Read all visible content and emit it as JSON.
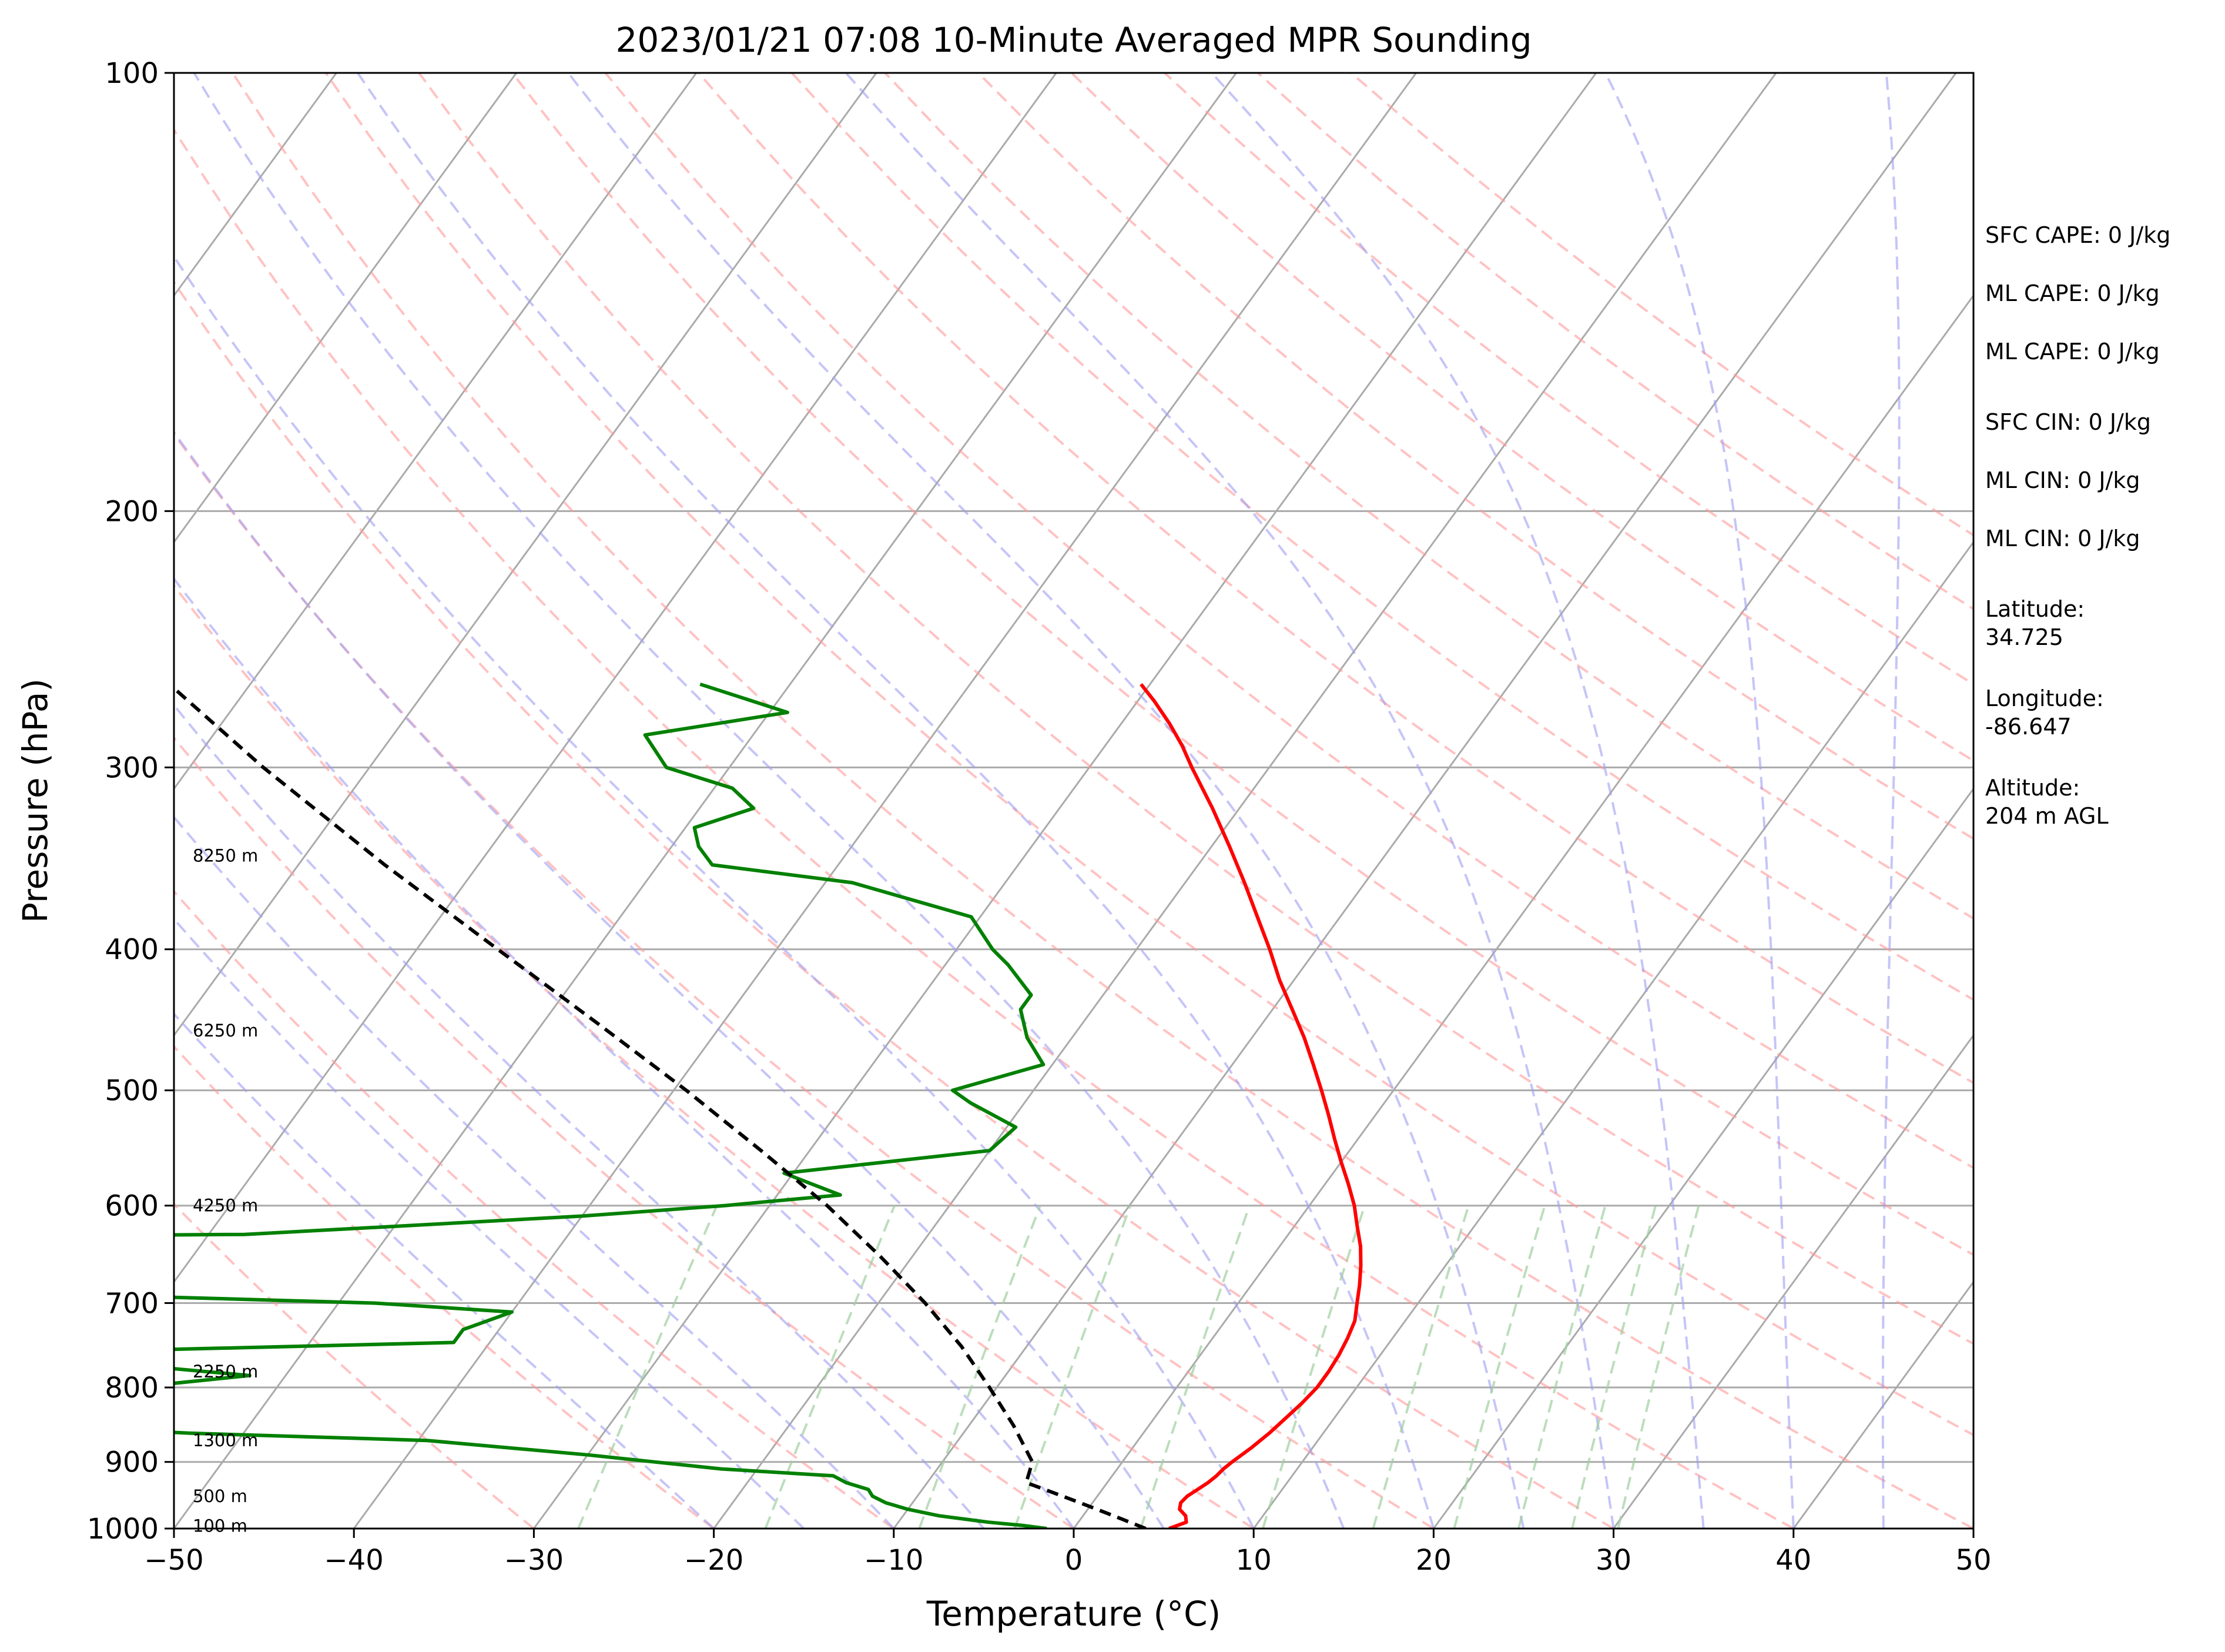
{
  "chart_data": {
    "type": "line",
    "title": "2023/01/21 07:08 10-Minute Averaged MPR Sounding",
    "xlabel": "Temperature (°C)",
    "ylabel": "Pressure (hPa)",
    "xlim": [
      -50,
      50
    ],
    "ylim": [
      1000,
      100
    ],
    "yscale": "log",
    "x_ticks": [
      "−50",
      "−40",
      "−30",
      "−20",
      "−10",
      "0",
      "10",
      "20",
      "30",
      "40",
      "50"
    ],
    "y_ticks": [
      "100",
      "200",
      "300",
      "400",
      "500",
      "600",
      "700",
      "800",
      "900",
      "1000"
    ],
    "background_lines": {
      "isotherms": "gray diagonal lines",
      "dry_adiabats": "red dashed",
      "moist_adiabats": "blue dashed",
      "mixing_ratio": "green dashed",
      "isobars": "gray horizontal lines"
    },
    "series": [
      {
        "color": "#ff0000",
        "style": "solid",
        "points": [
          [
            1000,
            5.3
          ],
          [
            990,
            6.0
          ],
          [
            980,
            5.7
          ],
          [
            970,
            5.1
          ],
          [
            960,
            4.9
          ],
          [
            950,
            5.0
          ],
          [
            940,
            5.3
          ],
          [
            930,
            5.6
          ],
          [
            920,
            5.8
          ],
          [
            910,
            5.9
          ],
          [
            900,
            6.1
          ],
          [
            880,
            6.6
          ],
          [
            860,
            7.0
          ],
          [
            840,
            7.3
          ],
          [
            820,
            7.6
          ],
          [
            800,
            7.8
          ],
          [
            780,
            7.8
          ],
          [
            760,
            7.7
          ],
          [
            740,
            7.5
          ],
          [
            720,
            7.2
          ],
          [
            700,
            6.6
          ],
          [
            680,
            6.0
          ],
          [
            660,
            5.3
          ],
          [
            640,
            4.5
          ],
          [
            620,
            3.5
          ],
          [
            600,
            2.5
          ],
          [
            580,
            1.3
          ],
          [
            560,
            0.0
          ],
          [
            540,
            -1.3
          ],
          [
            520,
            -2.6
          ],
          [
            500,
            -4.0
          ],
          [
            480,
            -5.5
          ],
          [
            460,
            -7.1
          ],
          [
            440,
            -8.9
          ],
          [
            420,
            -10.8
          ],
          [
            400,
            -12.6
          ],
          [
            380,
            -14.6
          ],
          [
            360,
            -16.7
          ],
          [
            340,
            -19.0
          ],
          [
            320,
            -21.5
          ],
          [
            300,
            -24.3
          ],
          [
            290,
            -25.7
          ],
          [
            280,
            -27.3
          ],
          [
            270,
            -29.1
          ],
          [
            263,
            -30.5
          ]
        ]
      },
      {
        "color": "#008000",
        "style": "solid",
        "points": [
          [
            1000,
            -1.5
          ],
          [
            995,
            -3.0
          ],
          [
            990,
            -5.0
          ],
          [
            980,
            -8.0
          ],
          [
            970,
            -10.0
          ],
          [
            960,
            -11.5
          ],
          [
            950,
            -12.5
          ],
          [
            940,
            -13.0
          ],
          [
            930,
            -14.5
          ],
          [
            920,
            -15.5
          ],
          [
            910,
            -22.0
          ],
          [
            900,
            -26.0
          ],
          [
            890,
            -30.0
          ],
          [
            870,
            -39.5
          ],
          [
            860,
            -53.0
          ],
          [
            850,
            -62.0
          ],
          [
            840,
            -58.0
          ],
          [
            830,
            -58.5
          ],
          [
            820,
            -62.5
          ],
          [
            810,
            -70.0
          ],
          [
            800,
            -58.0
          ],
          [
            785,
            -52.0
          ],
          [
            770,
            -60.0
          ],
          [
            760,
            -70.0
          ],
          [
            745,
            -42.0
          ],
          [
            730,
            -42.0
          ],
          [
            710,
            -40.0
          ],
          [
            700,
            -48.0
          ],
          [
            690,
            -66.0
          ],
          [
            689,
            -76.0
          ],
          [
            630,
            -76.0
          ],
          [
            628,
            -58.0
          ],
          [
            620,
            -50.0
          ],
          [
            610,
            -40.0
          ],
          [
            600,
            -32.5
          ],
          [
            590,
            -26.5
          ],
          [
            580,
            -28.5
          ],
          [
            570,
            -30.5
          ],
          [
            550,
            -20.0
          ],
          [
            530,
            -19.5
          ],
          [
            510,
            -23.0
          ],
          [
            500,
            -24.5
          ],
          [
            480,
            -20.5
          ],
          [
            460,
            -22.5
          ],
          [
            440,
            -24.0
          ],
          [
            430,
            -24.0
          ],
          [
            410,
            -26.5
          ],
          [
            400,
            -28.0
          ],
          [
            380,
            -30.5
          ],
          [
            360,
            -38.5
          ],
          [
            350,
            -47.0
          ],
          [
            340,
            -48.5
          ],
          [
            330,
            -49.5
          ],
          [
            320,
            -47.0
          ],
          [
            310,
            -49.0
          ],
          [
            300,
            -53.5
          ],
          [
            285,
            -56.0
          ],
          [
            275,
            -49.0
          ],
          [
            263,
            -55.0
          ]
        ]
      },
      {
        "color": "#000000",
        "style": "dashed",
        "points": [
          [
            1000,
            4.0
          ],
          [
            980,
            1.7
          ],
          [
            960,
            -0.7
          ],
          [
            940,
            -3.2
          ],
          [
            930,
            -4.5
          ],
          [
            900,
            -5.0
          ],
          [
            850,
            -7.5
          ],
          [
            800,
            -10.4
          ],
          [
            750,
            -13.6
          ],
          [
            700,
            -17.4
          ],
          [
            650,
            -21.8
          ],
          [
            600,
            -26.8
          ],
          [
            550,
            -32.7
          ],
          [
            500,
            -39.3
          ],
          [
            450,
            -46.9
          ],
          [
            400,
            -55.5
          ],
          [
            350,
            -65.2
          ],
          [
            300,
            -75.9
          ],
          [
            265,
            -84.0
          ]
        ]
      }
    ],
    "height_labels": [
      {
        "p": 996,
        "text": "100 m"
      },
      {
        "p": 950,
        "text": "500 m"
      },
      {
        "p": 870,
        "text": "1300 m"
      },
      {
        "p": 780,
        "text": "2250 m"
      },
      {
        "p": 600,
        "text": "4250 m"
      },
      {
        "p": 455,
        "text": "6250 m"
      },
      {
        "p": 345,
        "text": "8250 m"
      }
    ],
    "info_panel": [
      {
        "lines": [
          "SFC CAPE: 0 J/kg"
        ]
      },
      {
        "lines": [
          "ML CAPE: 0 J/kg"
        ]
      },
      {
        "lines": [
          "ML CAPE: 0 J/kg"
        ]
      },
      {
        "lines": [
          "SFC CIN: 0 J/kg"
        ]
      },
      {
        "lines": [
          "ML CIN: 0 J/kg"
        ]
      },
      {
        "lines": [
          "ML CIN: 0 J/kg"
        ]
      },
      {
        "lines": [
          "Latitude:",
          "34.725"
        ]
      },
      {
        "lines": [
          "Longitude:",
          "-86.647"
        ]
      },
      {
        "lines": [
          "Altitude:",
          "204 m AGL"
        ]
      }
    ]
  }
}
